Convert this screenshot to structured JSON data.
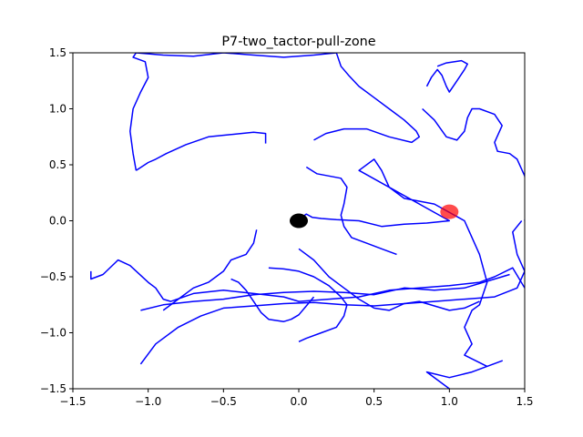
{
  "chart_data": {
    "type": "scatter",
    "title": "P7-two_tactor-pull-zone",
    "xlabel": "",
    "ylabel": "",
    "xlim": [
      -1.5,
      1.5
    ],
    "ylim": [
      -1.5,
      1.5
    ],
    "x_ticks": [
      "−1.5",
      "−1.0",
      "−0.5",
      "0.0",
      "0.5",
      "1.0",
      "1.5"
    ],
    "y_ticks": [
      "−1.5",
      "−1.0",
      "−0.5",
      "0.0",
      "0.5",
      "1.0",
      "1.5"
    ],
    "grid": false,
    "legend": "none",
    "markers": [
      {
        "name": "origin-marker",
        "x": 0.0,
        "y": 0.0,
        "color": "#000000"
      },
      {
        "name": "target-marker",
        "x": 1.0,
        "y": 0.08,
        "color": "#ff0000"
      }
    ],
    "series": [
      {
        "color": "#0000ff",
        "points": [
          [
            0.0,
            0.0
          ],
          [
            0.02,
            0.03
          ],
          [
            0.05,
            0.06
          ],
          [
            0.09,
            0.03
          ],
          [
            0.15,
            0.02
          ],
          [
            0.25,
            0.01
          ],
          [
            0.4,
            0.0
          ],
          [
            0.55,
            -0.05
          ],
          [
            0.7,
            -0.03
          ],
          [
            0.85,
            -0.02
          ],
          [
            1.0,
            0.0
          ],
          [
            0.4,
            0.45
          ],
          [
            0.5,
            0.55
          ],
          [
            0.55,
            0.45
          ],
          [
            0.6,
            0.3
          ],
          [
            0.7,
            0.2
          ],
          [
            0.9,
            0.15
          ],
          [
            1.1,
            0.0
          ],
          [
            1.2,
            -0.3
          ],
          [
            1.25,
            -0.55
          ],
          [
            1.2,
            -0.75
          ],
          [
            1.15,
            -0.8
          ],
          [
            1.1,
            -0.95
          ],
          [
            1.15,
            -1.1
          ],
          [
            1.1,
            -1.2
          ],
          [
            1.25,
            -1.3
          ],
          [
            1.35,
            -1.25
          ],
          [
            1.15,
            -1.35
          ],
          [
            1.0,
            -1.4
          ],
          [
            0.85,
            -1.35
          ],
          [
            1.0,
            -1.5
          ]
        ]
      },
      {
        "color": "#0000ff",
        "points": [
          [
            -1.38,
            -0.45
          ],
          [
            -1.38,
            -0.52
          ],
          [
            -1.3,
            -0.48
          ],
          [
            -1.2,
            -0.35
          ],
          [
            -1.12,
            -0.4
          ],
          [
            -1.0,
            -0.55
          ],
          [
            -0.95,
            -0.6
          ],
          [
            -0.9,
            -0.7
          ],
          [
            -0.85,
            -0.72
          ],
          [
            -0.7,
            -0.65
          ],
          [
            -0.5,
            -0.62
          ],
          [
            -0.3,
            -0.65
          ],
          [
            -0.1,
            -0.68
          ],
          [
            0.0,
            -0.72
          ],
          [
            0.2,
            -0.7
          ],
          [
            0.4,
            -0.68
          ],
          [
            0.6,
            -0.62
          ],
          [
            0.8,
            -0.6
          ],
          [
            1.0,
            -0.58
          ],
          [
            1.2,
            -0.55
          ],
          [
            1.3,
            -0.5
          ],
          [
            1.42,
            -0.42
          ],
          [
            1.5,
            -0.6
          ]
        ]
      },
      {
        "color": "#0000ff",
        "points": [
          [
            -1.05,
            -1.28
          ],
          [
            -0.95,
            -1.1
          ],
          [
            -0.8,
            -0.95
          ],
          [
            -0.65,
            -0.85
          ],
          [
            -0.5,
            -0.78
          ],
          [
            -0.3,
            -0.76
          ],
          [
            -0.1,
            -0.74
          ],
          [
            0.1,
            -0.73
          ],
          [
            0.3,
            -0.75
          ],
          [
            0.5,
            -0.76
          ],
          [
            0.7,
            -0.74
          ],
          [
            0.9,
            -0.72
          ],
          [
            1.1,
            -0.7
          ],
          [
            1.3,
            -0.68
          ],
          [
            1.45,
            -0.6
          ],
          [
            1.5,
            -0.45
          ],
          [
            1.45,
            -0.3
          ],
          [
            1.42,
            -0.1
          ],
          [
            1.48,
            0.0
          ]
        ]
      },
      {
        "color": "#0000ff",
        "points": [
          [
            -1.05,
            -0.8
          ],
          [
            -0.9,
            -0.75
          ],
          [
            -0.7,
            -0.72
          ],
          [
            -0.5,
            -0.7
          ],
          [
            -0.3,
            -0.66
          ],
          [
            -0.1,
            -0.64
          ],
          [
            0.1,
            -0.63
          ],
          [
            0.3,
            -0.64
          ],
          [
            0.5,
            -0.66
          ],
          [
            0.7,
            -0.6
          ],
          [
            0.9,
            -0.62
          ],
          [
            1.1,
            -0.6
          ],
          [
            1.3,
            -0.52
          ],
          [
            1.4,
            -0.48
          ]
        ]
      },
      {
        "color": "#0000ff",
        "points": [
          [
            -1.08,
            0.45
          ],
          [
            -1.0,
            0.52
          ],
          [
            -0.95,
            0.55
          ],
          [
            -0.88,
            0.6
          ],
          [
            -0.75,
            0.68
          ],
          [
            -0.6,
            0.75
          ],
          [
            -0.45,
            0.77
          ],
          [
            -0.3,
            0.79
          ],
          [
            -0.22,
            0.78
          ],
          [
            -0.22,
            0.69
          ]
        ]
      },
      {
        "color": "#0000ff",
        "points": [
          [
            -1.08,
            0.45
          ],
          [
            -1.1,
            0.6
          ],
          [
            -1.12,
            0.8
          ],
          [
            -1.1,
            1.0
          ],
          [
            -1.05,
            1.15
          ],
          [
            -1.0,
            1.28
          ],
          [
            -1.02,
            1.42
          ],
          [
            -1.1,
            1.46
          ],
          [
            -1.08,
            1.5
          ],
          [
            -0.9,
            1.48
          ],
          [
            -0.7,
            1.47
          ],
          [
            -0.5,
            1.5
          ],
          [
            -0.3,
            1.48
          ],
          [
            -0.1,
            1.46
          ],
          [
            0.1,
            1.48
          ],
          [
            0.25,
            1.5
          ]
        ]
      },
      {
        "color": "#0000ff",
        "points": [
          [
            0.25,
            1.5
          ],
          [
            0.28,
            1.38
          ],
          [
            0.33,
            1.3
          ],
          [
            0.4,
            1.2
          ],
          [
            0.5,
            1.1
          ],
          [
            0.6,
            1.0
          ],
          [
            0.7,
            0.9
          ],
          [
            0.78,
            0.8
          ],
          [
            0.8,
            0.75
          ],
          [
            0.75,
            0.7
          ],
          [
            0.6,
            0.75
          ],
          [
            0.45,
            0.82
          ],
          [
            0.3,
            0.82
          ],
          [
            0.18,
            0.78
          ],
          [
            0.1,
            0.72
          ]
        ]
      },
      {
        "color": "#0000ff",
        "points": [
          [
            0.82,
            1.0
          ],
          [
            0.9,
            0.9
          ],
          [
            0.98,
            0.75
          ],
          [
            1.05,
            0.72
          ],
          [
            1.1,
            0.8
          ],
          [
            1.12,
            0.92
          ],
          [
            1.15,
            1.0
          ],
          [
            1.2,
            1.0
          ],
          [
            1.3,
            0.95
          ],
          [
            1.35,
            0.85
          ],
          [
            1.3,
            0.7
          ],
          [
            1.32,
            0.62
          ],
          [
            1.4,
            0.6
          ],
          [
            1.45,
            0.55
          ],
          [
            1.5,
            0.4
          ],
          [
            1.52,
            0.2
          ],
          [
            1.5,
            0.0
          ]
        ]
      },
      {
        "color": "#0000ff",
        "points": [
          [
            0.85,
            1.2
          ],
          [
            0.88,
            1.28
          ],
          [
            0.92,
            1.35
          ],
          [
            0.95,
            1.3
          ],
          [
            0.98,
            1.2
          ],
          [
            1.0,
            1.15
          ],
          [
            1.05,
            1.25
          ],
          [
            1.1,
            1.35
          ],
          [
            1.12,
            1.4
          ],
          [
            1.08,
            1.43
          ],
          [
            0.98,
            1.41
          ],
          [
            0.92,
            1.38
          ]
        ]
      },
      {
        "color": "#0000ff",
        "points": [
          [
            0.0,
            -0.25
          ],
          [
            0.1,
            -0.35
          ],
          [
            0.2,
            -0.5
          ],
          [
            0.3,
            -0.6
          ],
          [
            0.4,
            -0.7
          ],
          [
            0.5,
            -0.78
          ],
          [
            0.6,
            -0.8
          ],
          [
            0.7,
            -0.74
          ],
          [
            0.8,
            -0.72
          ],
          [
            0.9,
            -0.76
          ],
          [
            1.0,
            -0.8
          ],
          [
            1.1,
            -0.78
          ],
          [
            1.2,
            -0.72
          ]
        ]
      },
      {
        "color": "#0000ff",
        "points": [
          [
            -0.2,
            -0.42
          ],
          [
            -0.1,
            -0.43
          ],
          [
            0.0,
            -0.45
          ],
          [
            0.1,
            -0.5
          ],
          [
            0.2,
            -0.58
          ],
          [
            0.28,
            -0.68
          ],
          [
            0.32,
            -0.75
          ],
          [
            0.3,
            -0.85
          ],
          [
            0.25,
            -0.95
          ],
          [
            0.15,
            -1.0
          ],
          [
            0.05,
            -1.05
          ],
          [
            0.0,
            -1.08
          ]
        ]
      },
      {
        "color": "#0000ff",
        "points": [
          [
            -0.45,
            -0.52
          ],
          [
            -0.4,
            -0.55
          ],
          [
            -0.35,
            -0.62
          ],
          [
            -0.3,
            -0.72
          ],
          [
            -0.25,
            -0.82
          ],
          [
            -0.2,
            -0.88
          ],
          [
            -0.1,
            -0.9
          ],
          [
            -0.05,
            -0.88
          ],
          [
            0.0,
            -0.84
          ],
          [
            0.05,
            -0.76
          ],
          [
            0.1,
            -0.68
          ]
        ]
      },
      {
        "color": "#0000ff",
        "points": [
          [
            0.05,
            0.48
          ],
          [
            0.12,
            0.42
          ],
          [
            0.2,
            0.4
          ],
          [
            0.28,
            0.38
          ],
          [
            0.32,
            0.3
          ],
          [
            0.3,
            0.15
          ],
          [
            0.28,
            0.05
          ],
          [
            0.3,
            -0.05
          ],
          [
            0.35,
            -0.15
          ],
          [
            0.45,
            -0.2
          ],
          [
            0.55,
            -0.25
          ],
          [
            0.65,
            -0.3
          ]
        ]
      },
      {
        "color": "#0000ff",
        "points": [
          [
            -0.28,
            -0.08
          ],
          [
            -0.3,
            -0.2
          ],
          [
            -0.35,
            -0.3
          ],
          [
            -0.45,
            -0.35
          ],
          [
            -0.5,
            -0.45
          ],
          [
            -0.55,
            -0.5
          ],
          [
            -0.6,
            -0.55
          ],
          [
            -0.7,
            -0.6
          ],
          [
            -0.8,
            -0.7
          ],
          [
            -0.9,
            -0.8
          ]
        ]
      }
    ]
  }
}
